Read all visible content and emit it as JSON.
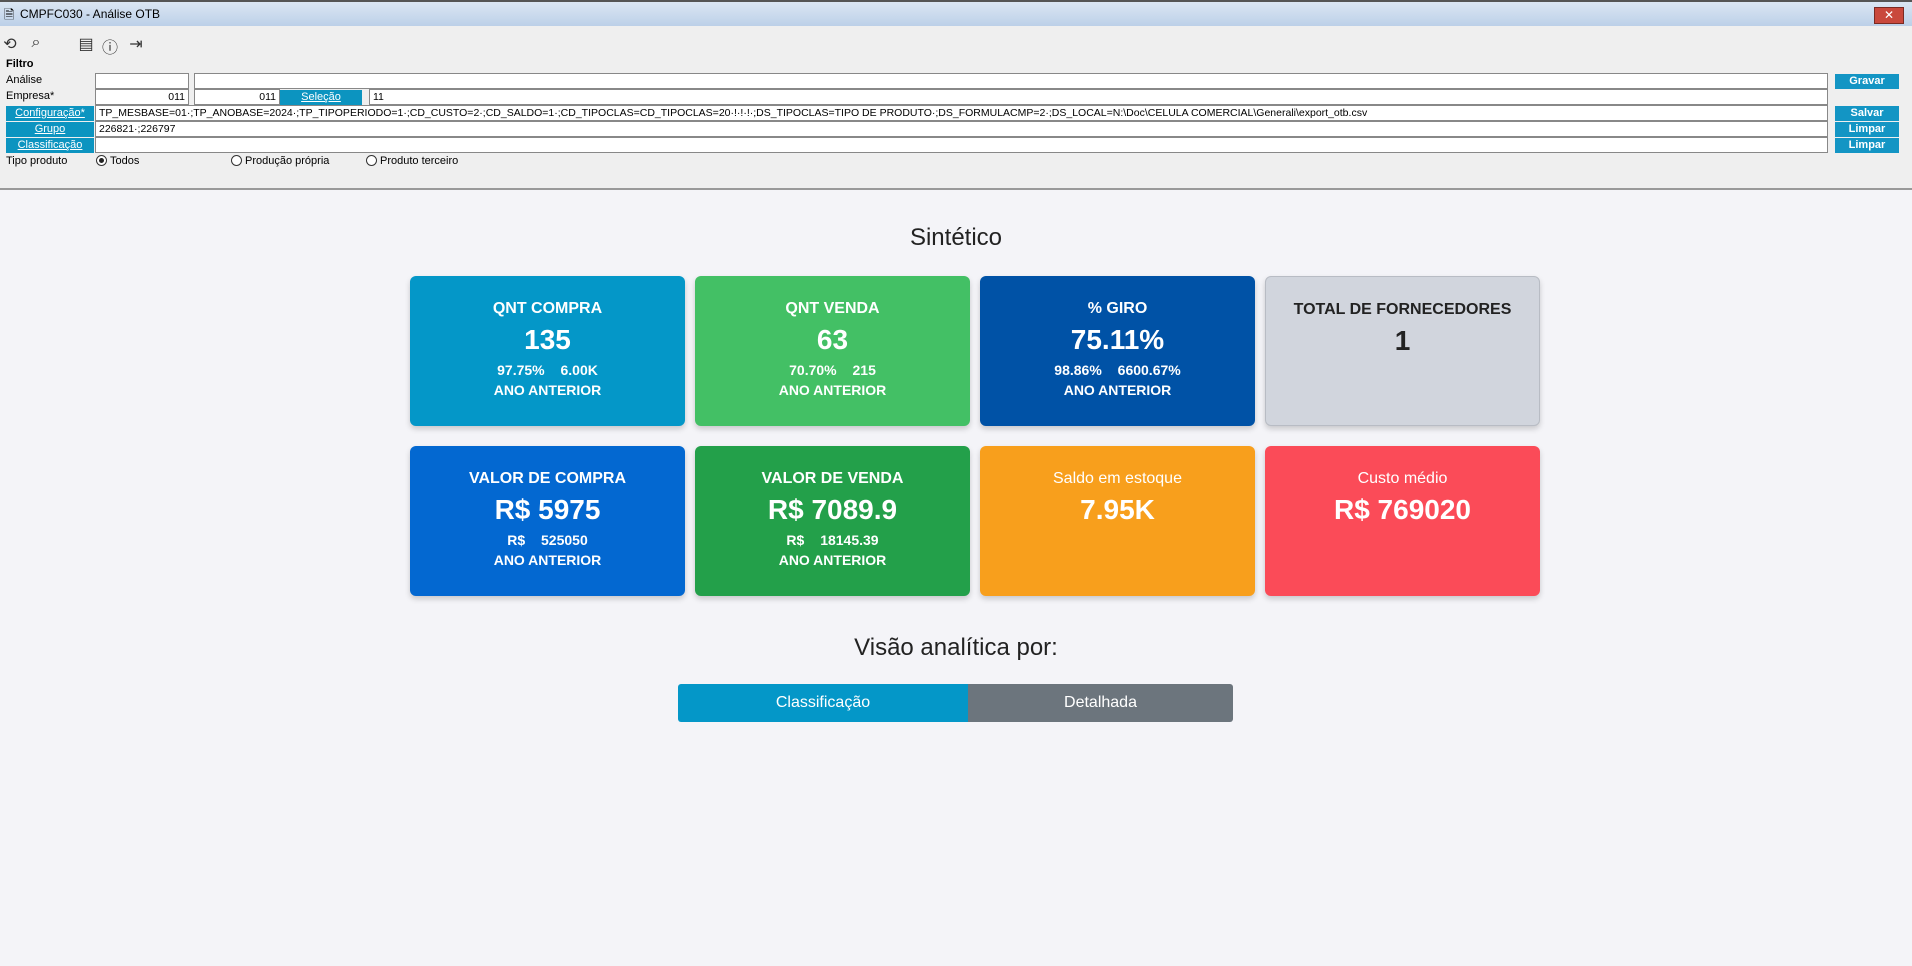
{
  "window": {
    "title": "CMPFC030 - Análise OTB",
    "close": "✕"
  },
  "toolbar": {
    "icons": [
      "undo-icon",
      "search-icon",
      "calendar-icon",
      "help-icon",
      "exit-icon"
    ]
  },
  "filter": {
    "heading": "Filtro",
    "analise_label": "Análise",
    "analise_code": "",
    "analise_desc": "",
    "empresa_label": "Empresa*",
    "empresa_from": "011",
    "empresa_to": "011",
    "selecao_label": "Seleção",
    "empresa_selection": "11",
    "config_label": "Configuração*",
    "config_value": "TP_MESBASE=01·;TP_ANOBASE=2024·;TP_TIPOPERIODO=1·;CD_CUSTO=2·;CD_SALDO=1·;CD_TIPOCLAS=CD_TIPOCLAS=20·!·!·!·;DS_TIPOCLAS=TIPO DE PRODUTO·;DS_FORMULACMP=2·;DS_LOCAL=N:\\Doc\\CELULA COMERCIAL\\Generali\\export_otb.csv",
    "grupo_label": "Grupo",
    "grupo_value": "226821·;226797",
    "classificacao_label": "Classificação",
    "classificacao_value": "",
    "tipo_label": "Tipo produto",
    "tipo_options": [
      {
        "label": "Todos",
        "selected": true
      },
      {
        "label": "Produção própria",
        "selected": false
      },
      {
        "label": "Produto terceiro",
        "selected": false
      }
    ],
    "gravar": "Gravar",
    "salvar": "Salvar",
    "limpar1": "Limpar",
    "limpar2": "Limpar"
  },
  "main": {
    "title": "Sintético",
    "cards": [
      {
        "title": "QNT COMPRA",
        "value": "135",
        "sub": "97.75% 6.00K",
        "foot": "ANO ANTERIOR",
        "color": "#0497c8"
      },
      {
        "title": "QNT VENDA",
        "value": "63",
        "sub": "70.70% 215",
        "foot": "ANO ANTERIOR",
        "color": "#43c065"
      },
      {
        "title": "% GIRO",
        "value": "75.11%",
        "sub": "98.86% 6600.67%",
        "foot": "ANO ANTERIOR",
        "color": "#0052a6"
      },
      {
        "title": "TOTAL DE FORNECEDORES",
        "value": "1",
        "sub": "",
        "foot": "",
        "color": "#d1d5dd"
      },
      {
        "title": "VALOR DE COMPRA",
        "value": "R$ 5975",
        "sub": "R$ 525050",
        "foot": "ANO ANTERIOR",
        "color": "#0368d1"
      },
      {
        "title": "VALOR DE VENDA",
        "value": "R$ 7089.9",
        "sub": "R$ 18145.39",
        "foot": "ANO ANTERIOR",
        "color": "#23a04a"
      },
      {
        "title": "Saldo em estoque",
        "value": "7.95K",
        "sub": "",
        "foot": "",
        "color": "#f89f1c"
      },
      {
        "title": "Custo médio",
        "value": "R$ 769020",
        "sub": "",
        "foot": "",
        "color": "#fb4b58"
      }
    ],
    "analytic_title": "Visão analítica por:",
    "tabs": [
      {
        "label": "Classificação",
        "active": true
      },
      {
        "label": "Detalhada",
        "active": false
      }
    ]
  }
}
